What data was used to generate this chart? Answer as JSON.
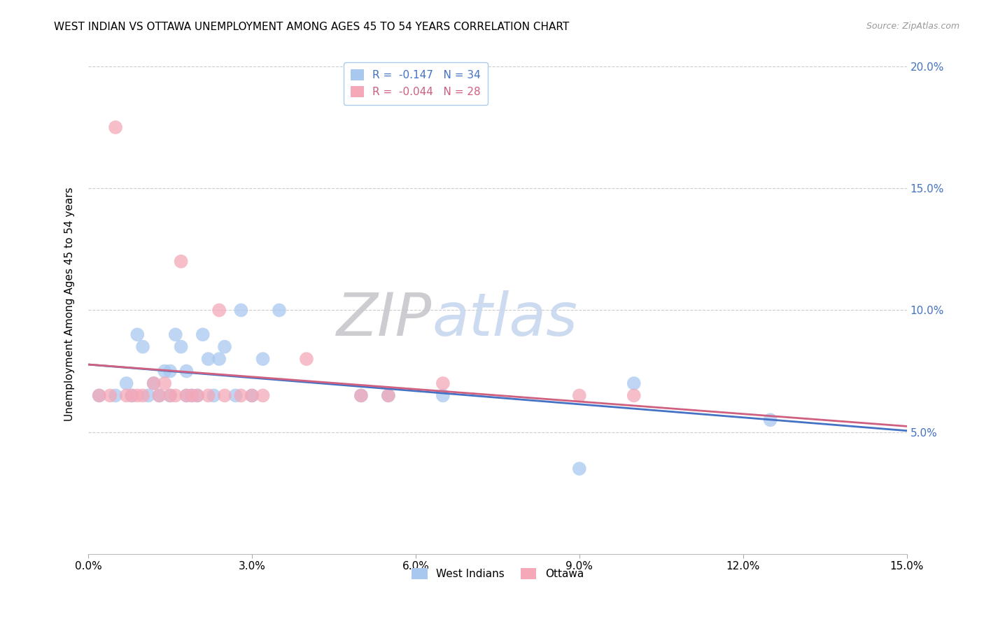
{
  "title": "WEST INDIAN VS OTTAWA UNEMPLOYMENT AMONG AGES 45 TO 54 YEARS CORRELATION CHART",
  "source": "Source: ZipAtlas.com",
  "ylabel": "Unemployment Among Ages 45 to 54 years",
  "xmin": 0.0,
  "xmax": 0.15,
  "ymin": 0.0,
  "ymax": 0.205,
  "xticks": [
    0.0,
    0.03,
    0.06,
    0.09,
    0.12,
    0.15
  ],
  "yticks_left": [
    0.05,
    0.1,
    0.15,
    0.2
  ],
  "ytick_labels_right": [
    "5.0%",
    "10.0%",
    "15.0%",
    "20.0%"
  ],
  "xtick_labels": [
    "0.0%",
    "3.0%",
    "6.0%",
    "9.0%",
    "12.0%",
    "15.0%"
  ],
  "legend_entry1": "R =  -0.147   N = 34",
  "legend_entry2": "R =  -0.044   N = 28",
  "legend_label1": "West Indians",
  "legend_label2": "Ottawa",
  "color_blue": "#A8C8F0",
  "color_pink": "#F4A8B8",
  "line_color_blue": "#4472C4",
  "line_color_pink": "#D06080",
  "watermark_zip_color": "#C8C8CC",
  "watermark_atlas_color": "#C8D8F0",
  "blue_x": [
    0.002,
    0.005,
    0.007,
    0.008,
    0.009,
    0.01,
    0.011,
    0.012,
    0.013,
    0.014,
    0.015,
    0.015,
    0.016,
    0.017,
    0.018,
    0.018,
    0.019,
    0.02,
    0.021,
    0.022,
    0.023,
    0.024,
    0.025,
    0.027,
    0.028,
    0.03,
    0.032,
    0.035,
    0.05,
    0.055,
    0.065,
    0.09,
    0.1,
    0.125
  ],
  "blue_y": [
    0.065,
    0.065,
    0.07,
    0.065,
    0.09,
    0.085,
    0.065,
    0.07,
    0.065,
    0.075,
    0.065,
    0.075,
    0.09,
    0.085,
    0.065,
    0.075,
    0.065,
    0.065,
    0.09,
    0.08,
    0.065,
    0.08,
    0.085,
    0.065,
    0.1,
    0.065,
    0.08,
    0.1,
    0.065,
    0.065,
    0.065,
    0.035,
    0.07,
    0.055
  ],
  "pink_x": [
    0.002,
    0.004,
    0.005,
    0.007,
    0.008,
    0.009,
    0.01,
    0.012,
    0.013,
    0.014,
    0.015,
    0.016,
    0.017,
    0.018,
    0.019,
    0.02,
    0.022,
    0.024,
    0.025,
    0.028,
    0.03,
    0.032,
    0.04,
    0.05,
    0.055,
    0.065,
    0.09,
    0.1
  ],
  "pink_y": [
    0.065,
    0.065,
    0.175,
    0.065,
    0.065,
    0.065,
    0.065,
    0.07,
    0.065,
    0.07,
    0.065,
    0.065,
    0.12,
    0.065,
    0.065,
    0.065,
    0.065,
    0.1,
    0.065,
    0.065,
    0.065,
    0.065,
    0.08,
    0.065,
    0.065,
    0.07,
    0.065,
    0.065
  ]
}
